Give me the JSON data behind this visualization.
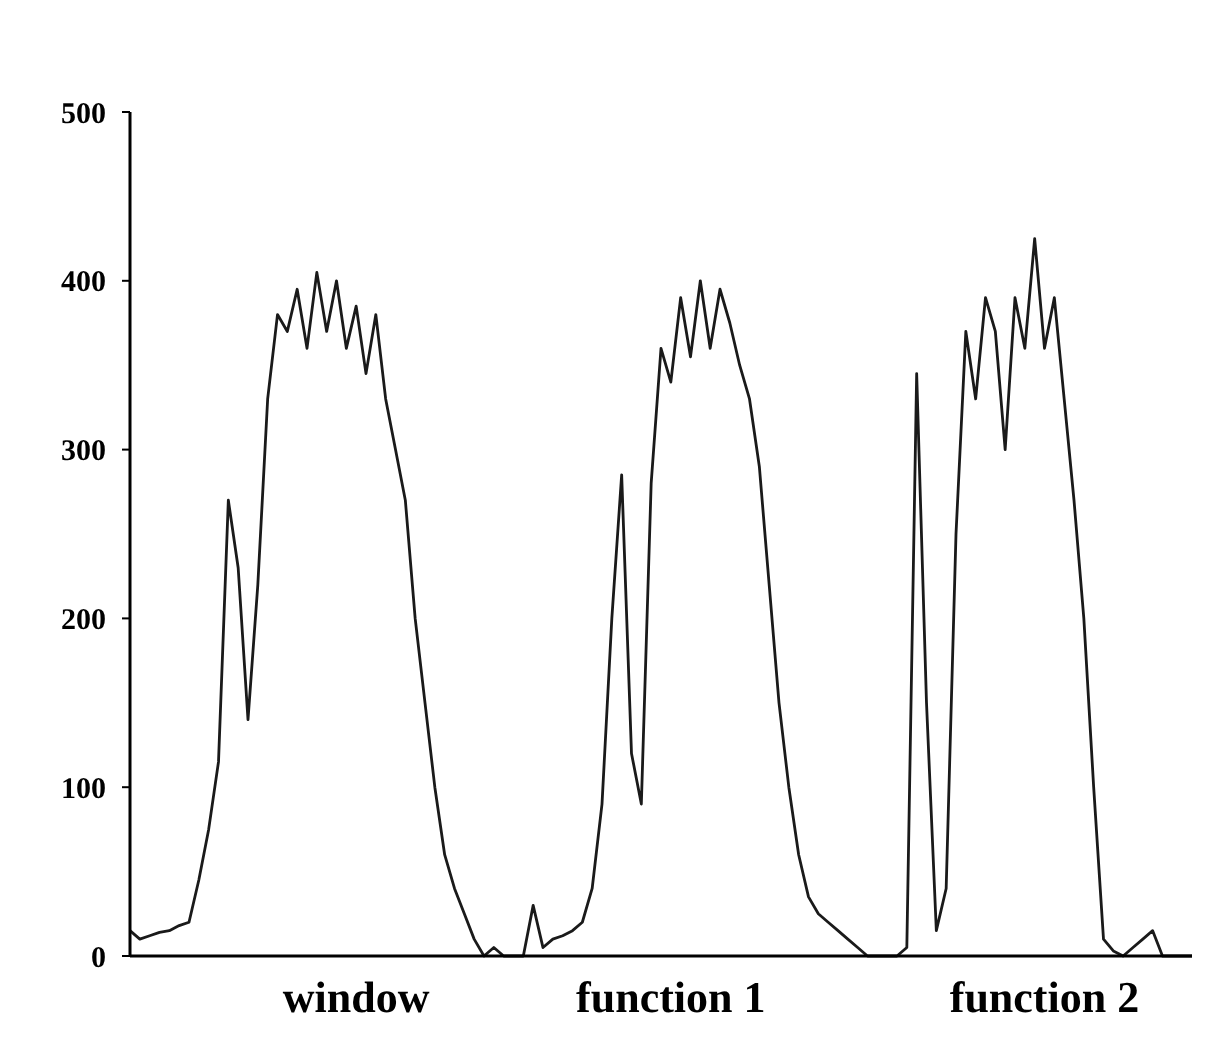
{
  "chart_data": {
    "type": "line",
    "categories": [
      null,
      null,
      null,
      null,
      null,
      null,
      null,
      null,
      null,
      null,
      null,
      null,
      null,
      null,
      null,
      null,
      null,
      null,
      null,
      null,
      null,
      null,
      null,
      "window",
      null,
      null,
      null,
      null,
      null,
      null,
      null,
      null,
      null,
      null,
      null,
      null,
      null,
      null,
      null,
      null,
      null,
      null,
      null,
      null,
      null,
      null,
      null,
      null,
      null,
      null,
      null,
      null,
      null,
      null,
      null,
      "function 1",
      null,
      null,
      null,
      null,
      null,
      null,
      null,
      null,
      null,
      null,
      null,
      null,
      null,
      null,
      null,
      null,
      null,
      null,
      null,
      null,
      null,
      null,
      null,
      null,
      null,
      null,
      null,
      null,
      null,
      null,
      null,
      null,
      null,
      null,
      null,
      null,
      null,
      "function 2",
      null,
      null,
      null,
      null,
      null,
      null,
      null,
      null,
      null,
      null,
      null,
      null,
      null,
      null,
      null
    ],
    "ylim": [
      0,
      500
    ],
    "yticks": [
      0,
      100,
      200,
      300,
      400,
      500
    ],
    "grid": false,
    "marker": "none",
    "line_style": "solid",
    "series": [
      {
        "color": "#1a1a1a",
        "values": [
          15,
          10,
          12,
          14,
          15,
          18,
          20,
          45,
          75,
          115,
          270,
          230,
          140,
          220,
          330,
          380,
          370,
          395,
          360,
          405,
          370,
          400,
          360,
          385,
          345,
          380,
          330,
          300,
          270,
          200,
          150,
          100,
          60,
          40,
          25,
          10,
          0,
          5,
          0,
          0,
          0,
          30,
          5,
          10,
          12,
          15,
          20,
          40,
          90,
          200,
          285,
          120,
          90,
          280,
          360,
          340,
          390,
          355,
          400,
          360,
          395,
          375,
          350,
          330,
          290,
          220,
          150,
          100,
          60,
          35,
          25,
          20,
          15,
          10,
          5,
          0,
          0,
          0,
          0,
          5,
          345,
          150,
          15,
          40,
          250,
          370,
          330,
          390,
          370,
          300,
          390,
          360,
          425,
          360,
          390,
          330,
          270,
          200,
          100,
          10,
          3,
          0,
          5,
          10,
          15,
          0,
          0,
          0,
          0
        ]
      }
    ]
  }
}
